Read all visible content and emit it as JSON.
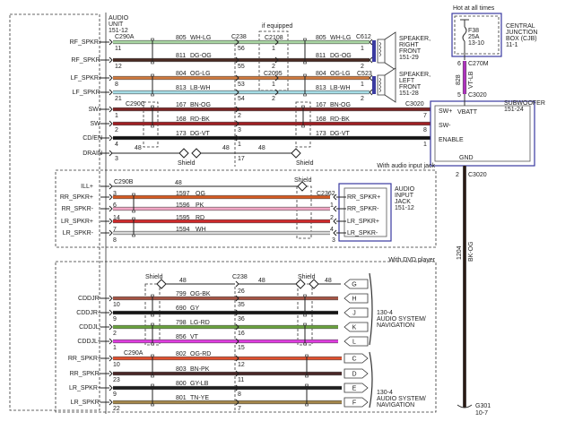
{
  "audio_unit": {
    "label": [
      "AUDIO",
      "UNIT",
      "151-12"
    ]
  },
  "top": {
    "connectors": {
      "left_a": "C290A",
      "left_c": "C290C",
      "mid": "C238",
      "equip": "C2108",
      "equip2": "C2095",
      "rf": "C612",
      "lf": "C523",
      "sub": "C3020"
    },
    "if_equipped": "if equipped",
    "shield": "Shield",
    "wires": [
      {
        "signal": "RF_SPKR+",
        "circuit": "805",
        "color_code": "WH-LG",
        "color": "#a9d6a3",
        "pin_left": "11",
        "pin_mid": "56",
        "pin_eq": "1",
        "pin_right": "1",
        "right_code": "WH-LG",
        "right_circuit": "805"
      },
      {
        "signal": "RF_SPKR-",
        "circuit": "811",
        "color_code": "DG-OG",
        "color": "#4a2a22",
        "pin_left": "12",
        "pin_mid": "55",
        "pin_eq": "2",
        "pin_right": "2",
        "right_code": "DG-OG",
        "right_circuit": "811"
      },
      {
        "signal": "LF_SPKR+",
        "circuit": "804",
        "color_code": "OG-LG",
        "color": "#d07a3e",
        "pin_left": "8",
        "pin_mid": "53",
        "pin_eq": "1",
        "pin_right": "1",
        "right_code": "OG-LG",
        "right_circuit": "804"
      },
      {
        "signal": "LF_SPKR-",
        "circuit": "813",
        "color_code": "LB-WH",
        "color": "#a6dde6",
        "pin_left": "21",
        "pin_mid": "54",
        "pin_eq": "2",
        "pin_right": "2",
        "right_code": "LB-WH",
        "right_circuit": "813"
      },
      {
        "signal": "SW+",
        "circuit": "167",
        "color_code": "BN-OG",
        "color": "#7e2424",
        "pin_left": "1",
        "pin_mid": "2",
        "pin_right": "7",
        "right_code": "BN-OG",
        "right_circuit": "167"
      },
      {
        "signal": "SW-",
        "circuit": "168",
        "color_code": "RD-BK",
        "color": "#a01e22",
        "pin_left": "2",
        "pin_mid": "3",
        "pin_right": "8",
        "right_code": "RD-BK",
        "right_circuit": "168"
      },
      {
        "signal": "CD/EN",
        "circuit": "173",
        "color_code": "DG-VT",
        "color": "#111111",
        "pin_left": "4",
        "pin_mid": "1",
        "pin_right": "1",
        "right_code": "DG-VT",
        "right_circuit": "173"
      },
      {
        "signal": "DRAIN",
        "circuit": "48",
        "color_code": "",
        "color": "#222222",
        "pin_left": "3",
        "pin_mid": "17",
        "pin_right": "",
        "right_code": "",
        "right_circuit": "48"
      }
    ],
    "speakers": [
      {
        "label": [
          "SPEAKER,",
          "RIGHT",
          "FRONT",
          "151-29"
        ]
      },
      {
        "label": [
          "SPEAKER,",
          "LEFT",
          "FRONT",
          "151-28"
        ]
      }
    ]
  },
  "cjb": {
    "hot": "Hot at all times",
    "fuse": "F38",
    "amps": "25A",
    "ref": "13-10",
    "label": [
      "CENTRAL",
      "JUNCTION",
      "BOX (CJB)",
      "11-1"
    ],
    "connector": "C270M",
    "pin": "6",
    "circuit": "828",
    "color_code": "VT-LB",
    "color": "#b030c0"
  },
  "subwoofer": {
    "label": [
      "SUBWOOFER",
      "151-24"
    ],
    "connector": "C3020",
    "vbatt_pin": "5",
    "pins": [
      "SW+",
      "SW-",
      "ENABLE"
    ],
    "vbatt": "VBATT",
    "gnd": "GND",
    "gnd_pin": "2",
    "gnd_connector": "C3020",
    "gnd_circuit": "1204",
    "gnd_color_code": "BK-OG",
    "ground": "G301",
    "ground_ref": "10-7"
  },
  "aux": {
    "title": "With audio input jack",
    "connector_left": "C290B",
    "connector_right": "C2362",
    "shield": "Shield",
    "jack_label": [
      "AUDIO",
      "INPUT",
      "JACK",
      "151-12"
    ],
    "wires": [
      {
        "signal": "ILL+",
        "circuit": "48",
        "color_code": "",
        "color": "#222222",
        "pin_left": "",
        "pin_right": "",
        "jack_pin": ""
      },
      {
        "signal": "RR_SPKR+",
        "circuit": "1597",
        "color_code": "OG",
        "color": "#d55a22",
        "pin_left": "3",
        "pin_right": "",
        "jack_pin": "RR_SPKR+"
      },
      {
        "signal": "RR_SPKR-",
        "circuit": "1596",
        "color_code": "PK",
        "color": "#f2a6c4",
        "pin_left": "6",
        "pin_right": "1",
        "jack_pin": "RR_SPKR-"
      },
      {
        "signal": "LR_SPKR+",
        "circuit": "1595",
        "color_code": "RD",
        "color": "#d0282a",
        "pin_left": "14",
        "pin_right": "2",
        "jack_pin": "LR_SPKR+"
      },
      {
        "signal": "LR_SPKR-",
        "circuit": "1594",
        "color_code": "WH",
        "color": "#d8d8d8",
        "pin_left": "7",
        "pin_right": "4",
        "jack_pin": "LR_SPKR-"
      }
    ],
    "extra_pins": [
      "8",
      "3"
    ]
  },
  "dvd": {
    "title": "With DVD player",
    "shield": "Shield",
    "connector_mid": "C238",
    "connector_left": "C290A",
    "nav_label": [
      "130-4",
      "AUDIO SYSTEM/",
      "NAVIGATION"
    ],
    "wires": [
      {
        "signal": "",
        "circuit": "48",
        "color_code": "",
        "color": "#222222",
        "pin_left": "",
        "pin_mid": "26",
        "tag": "G",
        "right_circuit": "48"
      },
      {
        "signal": "CDDJR-",
        "circuit": "799",
        "color_code": "OG-BK",
        "color": "#a65444",
        "pin_left": "10",
        "pin_mid": "35",
        "tag": "H"
      },
      {
        "signal": "CDDJR+",
        "circuit": "690",
        "color_code": "GY",
        "color": "#141414",
        "pin_left": "9",
        "pin_mid": "36",
        "tag": "J"
      },
      {
        "signal": "CDDJL-",
        "circuit": "798",
        "color_code": "LG-RD",
        "color": "#6aa33e",
        "pin_left": "2",
        "pin_mid": "16",
        "tag": "K"
      },
      {
        "signal": "CDDJL+",
        "circuit": "856",
        "color_code": "VT",
        "color": "#e03ce0",
        "pin_left": "1",
        "pin_mid": "15",
        "tag": "L"
      },
      {
        "signal": "RR_SPKR+",
        "circuit": "802",
        "color_code": "OG-RD",
        "color": "#e0502e",
        "pin_left": "10",
        "pin_mid": "12",
        "tag": "C"
      },
      {
        "signal": "RR_SPKR-",
        "circuit": "803",
        "color_code": "BN-PK",
        "color": "#4a2626",
        "pin_left": "23",
        "pin_mid": "11",
        "tag": "D"
      },
      {
        "signal": "LR_SPKR+",
        "circuit": "800",
        "color_code": "GY-LB",
        "color": "#1e1e1e",
        "pin_left": "9",
        "pin_mid": "8",
        "tag": "E"
      },
      {
        "signal": "LR_SPKR-",
        "circuit": "801",
        "color_code": "TN-YE",
        "color": "#a4864a",
        "pin_left": "22",
        "pin_mid": "7",
        "tag": "F"
      }
    ]
  }
}
